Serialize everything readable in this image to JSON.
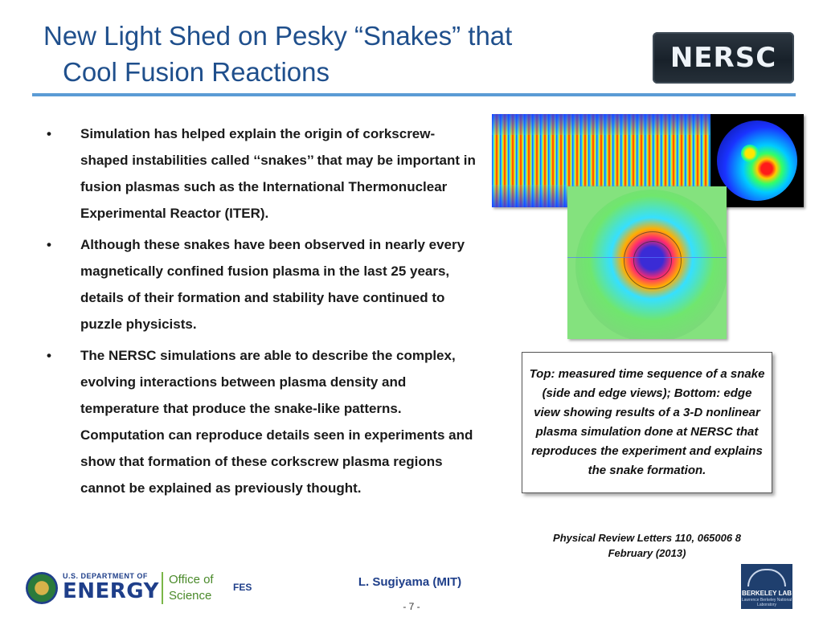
{
  "slide": {
    "title_line1": "New Light Shed on Pesky “Snakes” that",
    "title_line2": "Cool Fusion Reactions",
    "accent_color": "#1f4f8c",
    "rule_color": "#5b9bd5"
  },
  "header_logo": {
    "text": "NERSC"
  },
  "bullets": [
    {
      "marker": "•",
      "text": "Simulation has helped explain the origin of corkscrew-shaped instabilities called ‘‘snakes’’ that may be important in fusion plasmas such as the International Thermonuclear Experimental Reactor (ITER)."
    },
    {
      "marker": "•",
      "text": "Although these snakes have been observed in nearly every magnetically confined fusion plasma in the last 25 years, details of their formation and stability have continued to puzzle physicists."
    },
    {
      "marker": "•",
      "text": "The NERSC simulations are able to describe the complex, evolving interactions between plasma density and temperature that produce the snake-like patterns.  Computation can reproduce details seen in experiments and show that formation of these corkscrew plasma regions cannot be explained as previously thought."
    }
  ],
  "figure": {
    "caption": "Top: measured time sequence of a snake (side and edge views); Bottom: edge view showing results of a 3-D nonlinear plasma simulation done at NERSC that reproduces the experiment and explains the snake formation.",
    "reference_line1": "Physical  Review Letters 110, 065006 8",
    "reference_line2": "February (2013)"
  },
  "footer": {
    "doe_small": "U.S. DEPARTMENT OF",
    "doe_big": "ENERGY",
    "oos_line1": "Office of",
    "oos_line2": "Science",
    "fes": "FES",
    "author": "L. Sugiyama (MIT)",
    "page": "- 7 -",
    "lab_name": "BERKELEY LAB",
    "lab_sub": "Lawrence Berkeley National Laboratory"
  }
}
